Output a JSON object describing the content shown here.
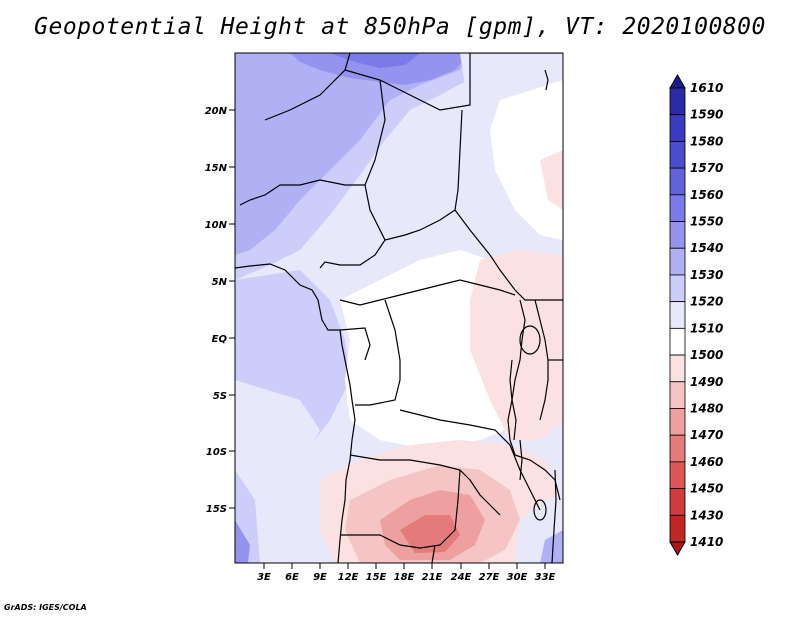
{
  "title": "Geopotential Height at 850hPa [gpm], VT: 2020100800",
  "footer": "GrADS: IGES/COLA",
  "lat_labels": [
    "20N",
    "15N",
    "10N",
    "5N",
    "EQ",
    "5S",
    "10S",
    "15S"
  ],
  "lon_labels": [
    "3E",
    "6E",
    "9E",
    "12E",
    "15E",
    "18E",
    "21E",
    "24E",
    "27E",
    "30E",
    "33E"
  ],
  "colorbar": {
    "labels": [
      "1610",
      "1590",
      "1580",
      "1570",
      "1560",
      "1550",
      "1540",
      "1530",
      "1520",
      "1510",
      "1500",
      "1490",
      "1480",
      "1470",
      "1460",
      "1450",
      "1430",
      "1410"
    ],
    "colors": [
      "#1c1c8e",
      "#2b2ba8",
      "#3b3bbf",
      "#4c4ccf",
      "#6262dd",
      "#7a7ae8",
      "#9494ef",
      "#b0b0f4",
      "#cccdf8",
      "#e8e8fb",
      "#ffffff",
      "#fbe1e1",
      "#f5c5c5",
      "#ee9f9f",
      "#e57a7a",
      "#dc5858",
      "#d03c3c",
      "#c02626",
      "#a81818"
    ]
  },
  "map_field": {
    "description_colors": {
      "high": "#b0b0f4",
      "mid_high": "#cccdf8",
      "mid": "#e8e8fb",
      "neutral": "#ffffff",
      "low1": "#fbe1e1",
      "low2": "#f5c5c5",
      "low3": "#ee9f9f"
    }
  }
}
